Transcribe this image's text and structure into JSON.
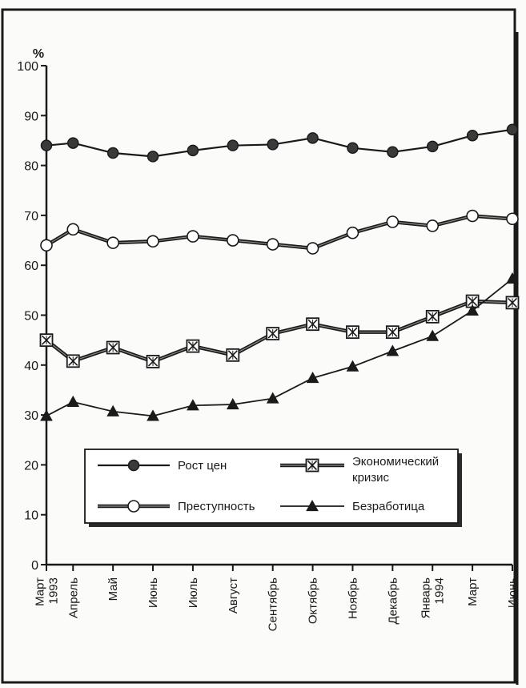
{
  "chart_data": {
    "type": "line",
    "ylabel": "%",
    "ylim": [
      0,
      100
    ],
    "yticks": [
      0,
      10,
      20,
      30,
      40,
      50,
      60,
      70,
      80,
      90,
      100
    ],
    "categories": [
      [
        "Март",
        "1993"
      ],
      [
        "Апрель"
      ],
      [
        "Май"
      ],
      [
        "Июнь"
      ],
      [
        "Июль"
      ],
      [
        "Август"
      ],
      [
        "Сентябрь"
      ],
      [
        "Октябрь"
      ],
      [
        "Ноябрь"
      ],
      [
        "Декабрь"
      ],
      [
        "Январь",
        "1994"
      ],
      [
        "Март"
      ],
      [
        "Июнь"
      ]
    ],
    "x": [
      0,
      1,
      2.5,
      4,
      5.5,
      7,
      8.5,
      10,
      11.5,
      13,
      14.5,
      16,
      17.5
    ],
    "series": [
      {
        "name": "Рост цен",
        "marker": "filled-circle",
        "values": [
          84,
          84.5,
          82.5,
          81.8,
          83,
          84,
          84.2,
          85.5,
          83.5,
          82.7,
          83.8,
          86,
          87.2
        ]
      },
      {
        "name": "Экономический кризис",
        "marker": "boxed-x",
        "values": [
          45,
          40.8,
          43.5,
          40.7,
          43.8,
          42,
          46.3,
          48.2,
          46.6,
          46.6,
          49.7,
          52.8,
          52.5
        ]
      },
      {
        "name": "Преступность",
        "marker": "open-circle",
        "values": [
          64,
          67.2,
          64.5,
          64.8,
          65.8,
          65,
          64.2,
          63.4,
          66.5,
          68.7,
          67.9,
          69.9,
          69.3
        ]
      },
      {
        "name": "Безработица",
        "marker": "filled-triangle",
        "values": [
          29.8,
          32.6,
          30.7,
          29.8,
          31.9,
          32.1,
          33.3,
          37.4,
          39.7,
          42.8,
          45.8,
          50.9,
          57.3
        ]
      }
    ],
    "legend": {
      "position": "lower-center"
    }
  },
  "colors": {
    "ink": "#1a1a1a",
    "background": "#fbfbf9"
  }
}
